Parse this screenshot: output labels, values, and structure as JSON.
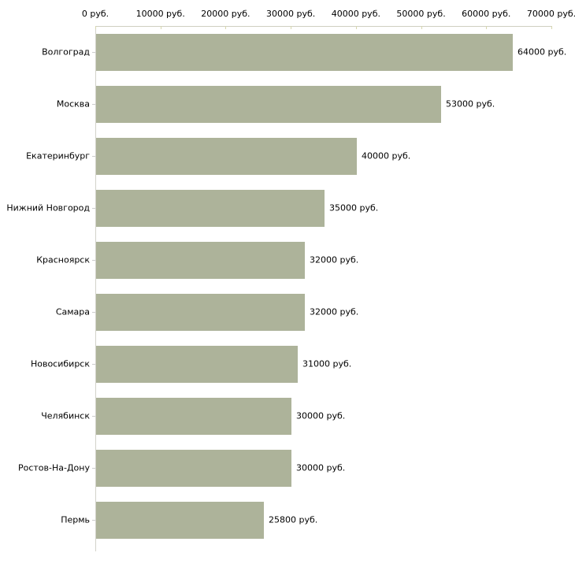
{
  "chart_data": {
    "type": "bar",
    "orientation": "horizontal",
    "title": "",
    "xlabel": "",
    "ylabel": "",
    "unit": "руб.",
    "xlim": [
      0,
      70000
    ],
    "grid": false,
    "legend": false,
    "x_tick_labels": [
      "0 руб.",
      "10000 руб.",
      "20000 руб.",
      "30000 руб.",
      "40000 руб.",
      "50000 руб.",
      "60000 руб.",
      "70000 руб."
    ],
    "x_tick_values": [
      0,
      10000,
      20000,
      30000,
      40000,
      50000,
      60000,
      70000
    ],
    "categories": [
      "Волгоград",
      "Москва",
      "Екатеринбург",
      "Нижний Новгород",
      "Красноярск",
      "Самара",
      "Новосибирск",
      "Челябинск",
      "Ростов-На-Дону",
      "Пермь"
    ],
    "values": [
      64000,
      53000,
      40000,
      35000,
      32000,
      32000,
      31000,
      30000,
      30000,
      25800
    ],
    "value_labels": [
      "64000 руб.",
      "53000 руб.",
      "40000 руб.",
      "35000 руб.",
      "32000 руб.",
      "32000 руб.",
      "31000 руб.",
      "30000 руб.",
      "30000 руб.",
      "25800 руб."
    ],
    "colors": {
      "bar_fill": "#adb39a",
      "axis_line": "#cfcfc0",
      "left_axis_line": "#d2d2ca",
      "tick_mark": "#d6d6ae",
      "category_tick": "#cccccc",
      "text": "#000000",
      "background": "#ffffff"
    }
  }
}
